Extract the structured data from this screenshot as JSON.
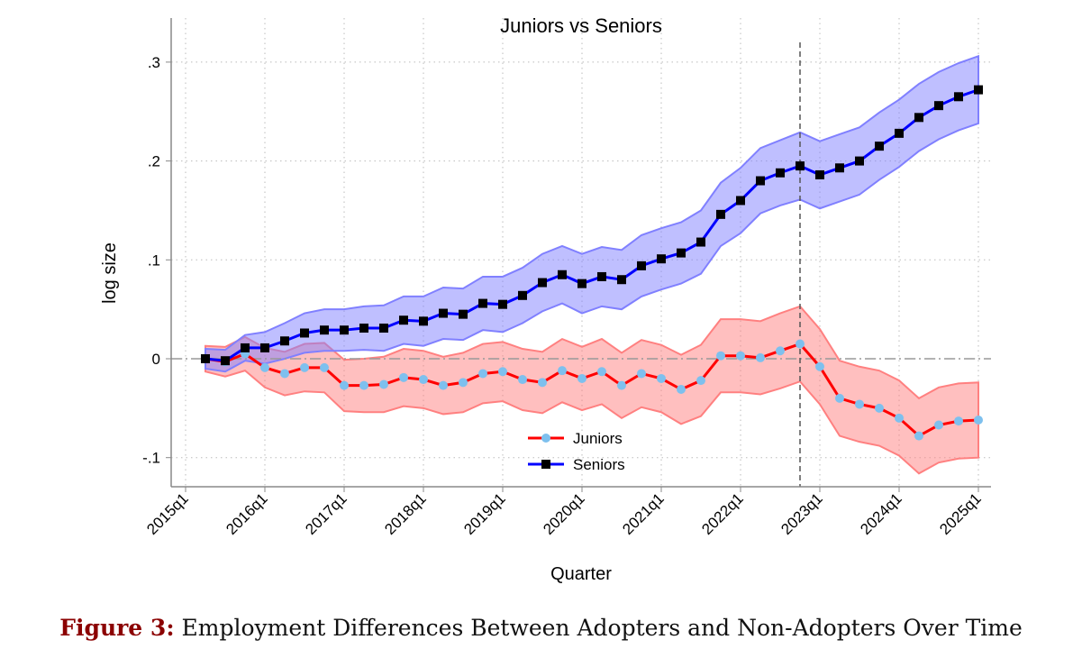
{
  "chart_data": {
    "type": "line",
    "title": "Juniors vs Seniors",
    "xlabel": "Quarter",
    "ylabel": "log size",
    "xlim": [
      "2015q1",
      "2025q1"
    ],
    "ylim": [
      -0.13,
      0.31
    ],
    "x_ticks": [
      "2015q1",
      "2016q1",
      "2017q1",
      "2018q1",
      "2019q1",
      "2020q1",
      "2021q1",
      "2022q1",
      "2023q1",
      "2024q1",
      "2025q1"
    ],
    "y_ticks": [
      {
        "value": -0.1,
        "label": "-.1"
      },
      {
        "value": 0,
        "label": "0"
      },
      {
        "value": 0.1,
        "label": ".1"
      },
      {
        "value": 0.2,
        "label": ".2"
      },
      {
        "value": 0.3,
        "label": ".3"
      }
    ],
    "grid": true,
    "legend_position": "bottom-center inside",
    "reference_lines": {
      "vertical_x": "2022q4",
      "horizontal_y": 0
    },
    "x": [
      "2015q2",
      "2015q3",
      "2015q4",
      "2016q1",
      "2016q2",
      "2016q3",
      "2016q4",
      "2017q1",
      "2017q2",
      "2017q3",
      "2017q4",
      "2018q1",
      "2018q2",
      "2018q3",
      "2018q4",
      "2019q1",
      "2019q2",
      "2019q3",
      "2019q4",
      "2020q1",
      "2020q2",
      "2020q3",
      "2020q4",
      "2021q1",
      "2021q2",
      "2021q3",
      "2021q4",
      "2022q1",
      "2022q2",
      "2022q3",
      "2022q4",
      "2023q1",
      "2023q2",
      "2023q3",
      "2023q4",
      "2024q1",
      "2024q2",
      "2024q3",
      "2024q4",
      "2025q1"
    ],
    "series": [
      {
        "name": "Juniors",
        "line_color": "#ff0000",
        "marker_color": "#7ec0ee",
        "band_color": "#ff8080",
        "marker": "circle",
        "values": [
          0,
          -0.003,
          0.005,
          -0.009,
          -0.015,
          -0.009,
          -0.009,
          -0.027,
          -0.027,
          -0.026,
          -0.019,
          -0.021,
          -0.027,
          -0.024,
          -0.015,
          -0.013,
          -0.021,
          -0.024,
          -0.012,
          -0.02,
          -0.013,
          -0.027,
          -0.015,
          -0.02,
          -0.031,
          -0.022,
          0.003,
          0.003,
          0.001,
          0.008,
          0.015,
          -0.008,
          -0.04,
          -0.046,
          -0.05,
          -0.06,
          -0.078,
          -0.067,
          -0.063,
          -0.062
        ],
        "ci_lower": [
          -0.013,
          -0.018,
          -0.012,
          -0.029,
          -0.037,
          -0.033,
          -0.034,
          -0.053,
          -0.054,
          -0.054,
          -0.048,
          -0.05,
          -0.056,
          -0.054,
          -0.045,
          -0.043,
          -0.052,
          -0.055,
          -0.044,
          -0.052,
          -0.046,
          -0.06,
          -0.049,
          -0.054,
          -0.066,
          -0.058,
          -0.034,
          -0.034,
          -0.036,
          -0.03,
          -0.023,
          -0.046,
          -0.078,
          -0.084,
          -0.088,
          -0.098,
          -0.116,
          -0.105,
          -0.101,
          -0.1
        ],
        "ci_upper": [
          0.013,
          0.012,
          0.022,
          0.011,
          0.007,
          0.015,
          0.016,
          -0.001,
          0.0,
          0.002,
          0.01,
          0.008,
          0.002,
          0.006,
          0.015,
          0.017,
          0.01,
          0.007,
          0.02,
          0.012,
          0.02,
          0.006,
          0.019,
          0.014,
          0.004,
          0.014,
          0.04,
          0.04,
          0.038,
          0.046,
          0.053,
          0.03,
          -0.002,
          -0.008,
          -0.012,
          -0.022,
          -0.04,
          -0.029,
          -0.025,
          -0.024
        ]
      },
      {
        "name": "Seniors",
        "line_color": "#0000ff",
        "marker_color": "#000000",
        "band_color": "#8080ff",
        "marker": "square",
        "values": [
          0,
          -0.002,
          0.011,
          0.011,
          0.018,
          0.026,
          0.029,
          0.029,
          0.031,
          0.031,
          0.039,
          0.038,
          0.046,
          0.045,
          0.056,
          0.055,
          0.064,
          0.077,
          0.085,
          0.076,
          0.083,
          0.08,
          0.094,
          0.101,
          0.107,
          0.118,
          0.146,
          0.16,
          0.18,
          0.188,
          0.195,
          0.186,
          0.193,
          0.2,
          0.215,
          0.228,
          0.244,
          0.256,
          0.265,
          0.272
        ],
        "ci_lower": [
          -0.01,
          -0.013,
          -0.002,
          -0.005,
          0.0,
          0.006,
          0.008,
          0.008,
          0.009,
          0.008,
          0.015,
          0.013,
          0.02,
          0.019,
          0.029,
          0.027,
          0.036,
          0.048,
          0.056,
          0.046,
          0.053,
          0.05,
          0.063,
          0.07,
          0.076,
          0.086,
          0.114,
          0.127,
          0.147,
          0.155,
          0.161,
          0.152,
          0.159,
          0.166,
          0.181,
          0.194,
          0.21,
          0.222,
          0.231,
          0.238
        ],
        "ci_upper": [
          0.01,
          0.009,
          0.024,
          0.027,
          0.036,
          0.046,
          0.05,
          0.05,
          0.053,
          0.054,
          0.063,
          0.063,
          0.072,
          0.071,
          0.083,
          0.083,
          0.092,
          0.106,
          0.114,
          0.106,
          0.113,
          0.11,
          0.125,
          0.132,
          0.138,
          0.15,
          0.178,
          0.193,
          0.213,
          0.221,
          0.229,
          0.22,
          0.227,
          0.234,
          0.249,
          0.262,
          0.278,
          0.29,
          0.299,
          0.306
        ]
      }
    ]
  },
  "caption": {
    "label": "Figure 3:",
    "text": " Employment Differences Between Adopters and Non-Adopters Over Time"
  }
}
